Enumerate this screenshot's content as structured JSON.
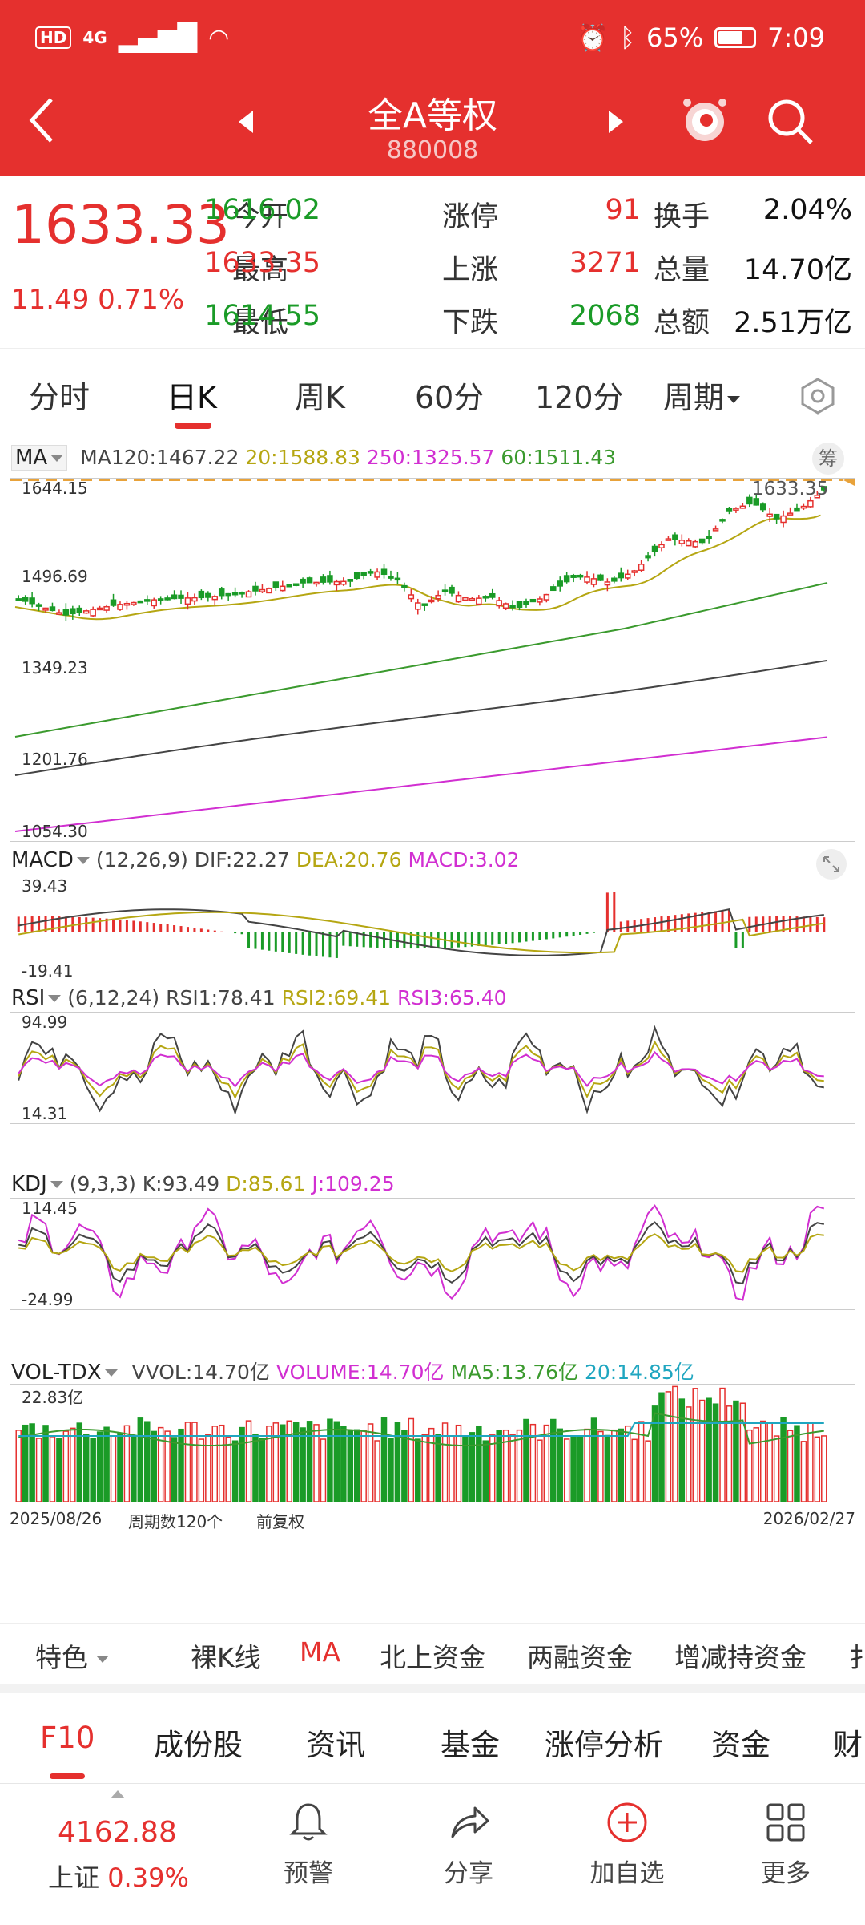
{
  "status_bar": {
    "left": [
      "HD",
      "4G"
    ],
    "battery": "65%",
    "time": "7:09"
  },
  "header": {
    "title": "全A等权",
    "code": "880008"
  },
  "quote": {
    "price": "1633.33",
    "change": "11.49 0.71%",
    "cells": [
      {
        "label": "今开",
        "value": "1616.02",
        "color": "green"
      },
      {
        "label": "涨停",
        "value": "91",
        "color": "red"
      },
      {
        "label": "换手",
        "value": "2.04%",
        "color": "black"
      },
      {
        "label": "最高",
        "value": "1633.35",
        "color": "red"
      },
      {
        "label": "上涨",
        "value": "3271",
        "color": "red"
      },
      {
        "label": "总量",
        "value": "14.70亿",
        "color": "black"
      },
      {
        "label": "最低",
        "value": "1614.55",
        "color": "green"
      },
      {
        "label": "下跌",
        "value": "2068",
        "color": "green"
      },
      {
        "label": "总额",
        "value": "2.51万亿",
        "color": "black"
      }
    ]
  },
  "tabs": [
    "分时",
    "日K",
    "周K",
    "60分",
    "120分",
    "周期"
  ],
  "active_tab": "日K",
  "ma_legend": {
    "button": "MA",
    "ma120": "MA120:1467.22",
    "ma20": "20:1588.83",
    "ma250": "250:1325.57",
    "ma60": "60:1511.43",
    "chip_button": "筹"
  },
  "price_axis": [
    "1644.15",
    "1496.69",
    "1349.23",
    "1201.76",
    "1054.30"
  ],
  "last_price_marker": "1633.35",
  "macd_legend": {
    "button": "MACD",
    "params": "(12,26,9)",
    "dif": "DIF:22.27",
    "dea": "DEA:20.76",
    "macd": "MACD:3.02"
  },
  "macd_axis": [
    "39.43",
    "-19.41"
  ],
  "rsi_legend": {
    "button": "RSI",
    "params": "(6,12,24)",
    "rsi1": "RSI1:78.41",
    "rsi2": "RSI2:69.41",
    "rsi3": "RSI3:65.40"
  },
  "rsi_axis": [
    "94.99",
    "14.31"
  ],
  "kdj_legend": {
    "button": "KDJ",
    "params": "(9,3,3)",
    "k": "K:93.49",
    "d": "D:85.61",
    "j": "J:109.25"
  },
  "kdj_axis": [
    "114.45",
    "-24.99"
  ],
  "vol_legend": {
    "button": "VOL-TDX",
    "vvol": "VVOL:14.70亿",
    "volume": "VOLUME:14.70亿",
    "ma5": "MA5:13.76亿",
    "ma20": "20:14.85亿"
  },
  "vol_axis": [
    "22.83亿"
  ],
  "footer_axis": {
    "start": "2025/08/26",
    "count": "周期数120个",
    "adjust": "前复权",
    "end": "2026/02/27"
  },
  "feature_tabs": [
    "特色",
    "裸K线",
    "MA",
    "北上资金",
    "两融资金",
    "增减持资金",
    "扌"
  ],
  "section_tabs": [
    "F10",
    "成份股",
    "资讯",
    "基金",
    "涨停分析",
    "资金",
    "财"
  ],
  "bottom_index": {
    "value": "4162.88",
    "name": "上证",
    "change": "0.39%"
  },
  "bottom_actions": [
    "预警",
    "分享",
    "加自选",
    "更多"
  ],
  "colors": {
    "up": "#e5302e",
    "down": "#1a9b27",
    "header": "#e5302e",
    "ma20": "#b5a612",
    "ma60": "#3b9a2e",
    "ma120": "#444444",
    "ma250": "#d12fd1"
  }
}
